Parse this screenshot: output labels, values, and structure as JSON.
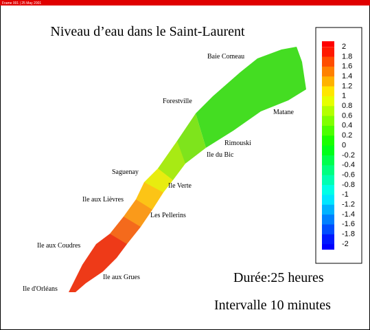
{
  "header": {
    "frame": "Frame 001 | 25 May 2001"
  },
  "title": "Niveau d’eau dans le  Saint-Laurent",
  "places": [
    "Baie Comeau",
    "Forestville",
    "Matane",
    "Rimouski",
    "Ile du Bic",
    "Saguenay",
    "Ile Verte",
    "Ile aux Lièvres",
    "Les Pellerins",
    "Ile aux Coudres",
    "Ile aux Grues",
    "Ile d'Orléans"
  ],
  "colorbar": {
    "ticks": [
      2,
      1.8,
      1.6,
      1.4,
      1.2,
      1,
      0.8,
      0.6,
      0.4,
      0.2,
      0,
      -0.2,
      -0.4,
      -0.6,
      -0.8,
      -1,
      -1.2,
      -1.4,
      -1.6,
      -1.8,
      -2
    ]
  },
  "duration": "Durée:25 heures",
  "interval": "Intervalle 10 minutes"
}
